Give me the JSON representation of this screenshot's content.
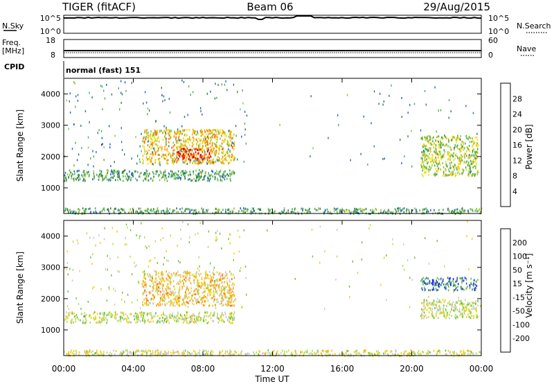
{
  "header": {
    "radar": "TIGER (fitACF)",
    "beam": "Beam 06",
    "date": "29/Aug/2015"
  },
  "strip_labels": {
    "nsky": "N.Sky",
    "nsearch": "N.Search",
    "freq": "Freq.",
    "mhz": "[MHz]",
    "nave": "Nave",
    "cpid": "CPID",
    "nsky_top": "10^5",
    "nsky_bot": "10^0",
    "freq_top": "18",
    "freq_bot": "8",
    "nave_top": "60",
    "nave_bot": "0",
    "cpid_text": "normal (fast) 151"
  },
  "axes": {
    "ylabel": "Slant Range [km]",
    "xlabel": "Time UT",
    "y_ticks": [
      "1000",
      "2000",
      "3000",
      "4000"
    ],
    "x_ticks": [
      "00:00",
      "04:00",
      "08:00",
      "12:00",
      "16:00",
      "20:00",
      "00:00"
    ]
  },
  "colorbars": {
    "power": {
      "label": "Power [dB]",
      "ticks": [
        "4",
        "8",
        "12",
        "16",
        "20",
        "24",
        "28"
      ],
      "colors": [
        "#1e1ee6",
        "#1e64d2",
        "#2e7d4f",
        "#4caf50",
        "#8bc34a",
        "#f0e000",
        "#ffb000",
        "#ff7000",
        "#ff3000",
        "#e00000"
      ]
    },
    "velocity": {
      "label": "Velocity [m s⁻¹]",
      "ticks": [
        "200",
        "100",
        "50",
        "15",
        "-15",
        "-50",
        "-100",
        "-200"
      ],
      "colors": [
        "#1e1ee6",
        "#2a60c8",
        "#2e8b57",
        "#6abf3f",
        "#b0e040",
        "#c8c8c8",
        "#f0d000",
        "#ffa000",
        "#ff6000",
        "#e00000"
      ]
    }
  },
  "chart_data": {
    "type": "heatmap",
    "title": "TIGER (fitACF)",
    "xlabel": "Time UT",
    "ylabel": "Slant Range [km]",
    "x_range_hours": [
      0,
      24
    ],
    "y_range_km": [
      180,
      4500
    ],
    "panels": [
      {
        "name": "Power [dB]",
        "color_range": [
          0,
          30
        ],
        "features": [
          {
            "t": [
              0.0,
              9.8
            ],
            "range": [
              1250,
              1600
            ],
            "value": 10
          },
          {
            "t": [
              4.5,
              9.8
            ],
            "range": [
              1800,
              2900
            ],
            "value": 18
          },
          {
            "t": [
              6.5,
              8.5
            ],
            "range": [
              1900,
              2300
            ],
            "value": 26
          },
          {
            "t": [
              0.0,
              24.0
            ],
            "range": [
              200,
              380
            ],
            "value": 10
          },
          {
            "t": [
              20.5,
              23.8
            ],
            "range": [
              1400,
              2700
            ],
            "value": 14
          }
        ]
      },
      {
        "name": "Velocity [m s⁻¹]",
        "color_range": [
          -200,
          200
        ],
        "features": [
          {
            "t": [
              0.0,
              9.8
            ],
            "range": [
              1250,
              1600
            ],
            "value": 0
          },
          {
            "t": [
              4.5,
              9.8
            ],
            "range": [
              1800,
              2900
            ],
            "value": 60
          },
          {
            "t": [
              0.0,
              24.0
            ],
            "range": [
              200,
              380
            ],
            "value": 20
          },
          {
            "t": [
              20.5,
              23.8
            ],
            "range": [
              2300,
              2700
            ],
            "value": -120
          },
          {
            "t": [
              20.5,
              23.8
            ],
            "range": [
              1400,
              2000
            ],
            "value": 0
          }
        ]
      }
    ]
  }
}
